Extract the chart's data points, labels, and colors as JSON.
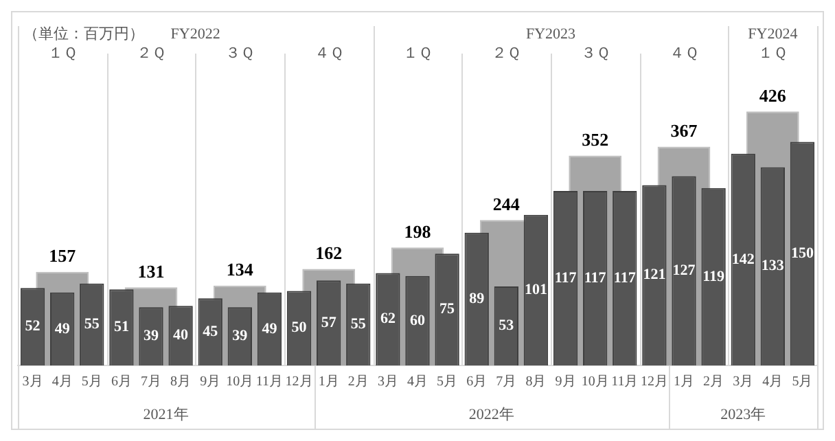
{
  "chart_data": {
    "type": "bar",
    "categories": [
      "3月",
      "4月",
      "5月",
      "6月",
      "7月",
      "8月",
      "9月",
      "10月",
      "11月",
      "12月",
      "1月",
      "2月",
      "3月",
      "4月",
      "5月",
      "6月",
      "7月",
      "8月",
      "9月",
      "10月",
      "11月",
      "12月",
      "1月",
      "2月",
      "3月",
      "4月",
      "5月"
    ],
    "series": [
      {
        "color": "#a6a6a6",
        "axis": "y2",
        "values": [
          null,
          157,
          null,
          null,
          131,
          null,
          null,
          134,
          null,
          null,
          162,
          null,
          null,
          198,
          null,
          null,
          244,
          null,
          null,
          352,
          null,
          null,
          367,
          null,
          null,
          426,
          null
        ]
      },
      {
        "color": "#555555",
        "values": [
          52,
          49,
          55,
          51,
          39,
          40,
          45,
          39,
          49,
          50,
          57,
          55,
          62,
          60,
          75,
          89,
          53,
          101,
          117,
          117,
          117,
          121,
          127,
          119,
          142,
          133,
          150
        ]
      }
    ],
    "tick_labels": "x",
    "data_labels": true,
    "grid": false,
    "legend": false,
    "annotations": [
      "（単位：百万円）",
      "FY2022",
      "FY2023",
      "FY2024",
      "１Ｑ",
      "２Ｑ",
      "３Ｑ",
      "４Ｑ",
      "１Ｑ",
      "２Ｑ",
      "３Ｑ",
      "４Ｑ",
      "１Ｑ",
      "2021年",
      "2022年",
      "2023年"
    ]
  }
}
